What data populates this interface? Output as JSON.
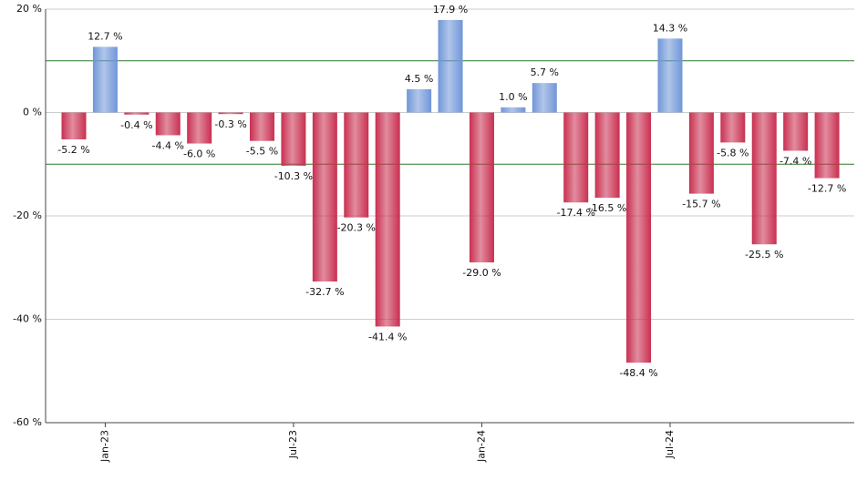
{
  "chart_data": {
    "type": "bar",
    "categories": [
      null,
      "Jan-23",
      null,
      null,
      null,
      null,
      null,
      "Jul-23",
      null,
      null,
      null,
      null,
      null,
      "Jan-24",
      null,
      null,
      null,
      null,
      null,
      "Jul-24",
      null,
      null,
      null,
      null,
      null
    ],
    "values": [
      -5.2,
      12.7,
      -0.4,
      -4.4,
      -6.0,
      -0.3,
      -5.5,
      -10.3,
      -32.7,
      -20.3,
      -41.4,
      4.5,
      17.9,
      -29.0,
      1.0,
      5.7,
      -17.4,
      -16.5,
      -48.4,
      14.3,
      -15.7,
      -5.8,
      -25.5,
      -7.4,
      -12.7
    ],
    "value_labels": [
      "-5.2 %",
      "12.7 %",
      "-0.4 %",
      "-4.4 %",
      "-6.0 %",
      "-0.3 %",
      "-5.5 %",
      "-10.3 %",
      "-32.7 %",
      "-20.3 %",
      "-41.4 %",
      "4.5 %",
      "17.9 %",
      "-29.0 %",
      "1.0 %",
      "5.7 %",
      "-17.4 %",
      "-16.5 %",
      "-48.4 %",
      "14.3 %",
      "-15.7 %",
      "-5.8 %",
      "-25.5 %",
      "-7.4 %",
      "-12.7 %"
    ],
    "positive_color": "#7096d8",
    "negative_color": "#c92f50",
    "ylim": [
      -60,
      20
    ],
    "yticks": [
      {
        "value": -60,
        "label": "-60 %"
      },
      {
        "value": -40,
        "label": "-40 %"
      },
      {
        "value": -20,
        "label": "-20 %"
      },
      {
        "value": 0,
        "label": "0 %"
      },
      {
        "value": 20,
        "label": "20 %"
      }
    ],
    "grid": true,
    "reference_lines": [
      10,
      -10
    ],
    "reference_color": "#2e7d2e"
  }
}
